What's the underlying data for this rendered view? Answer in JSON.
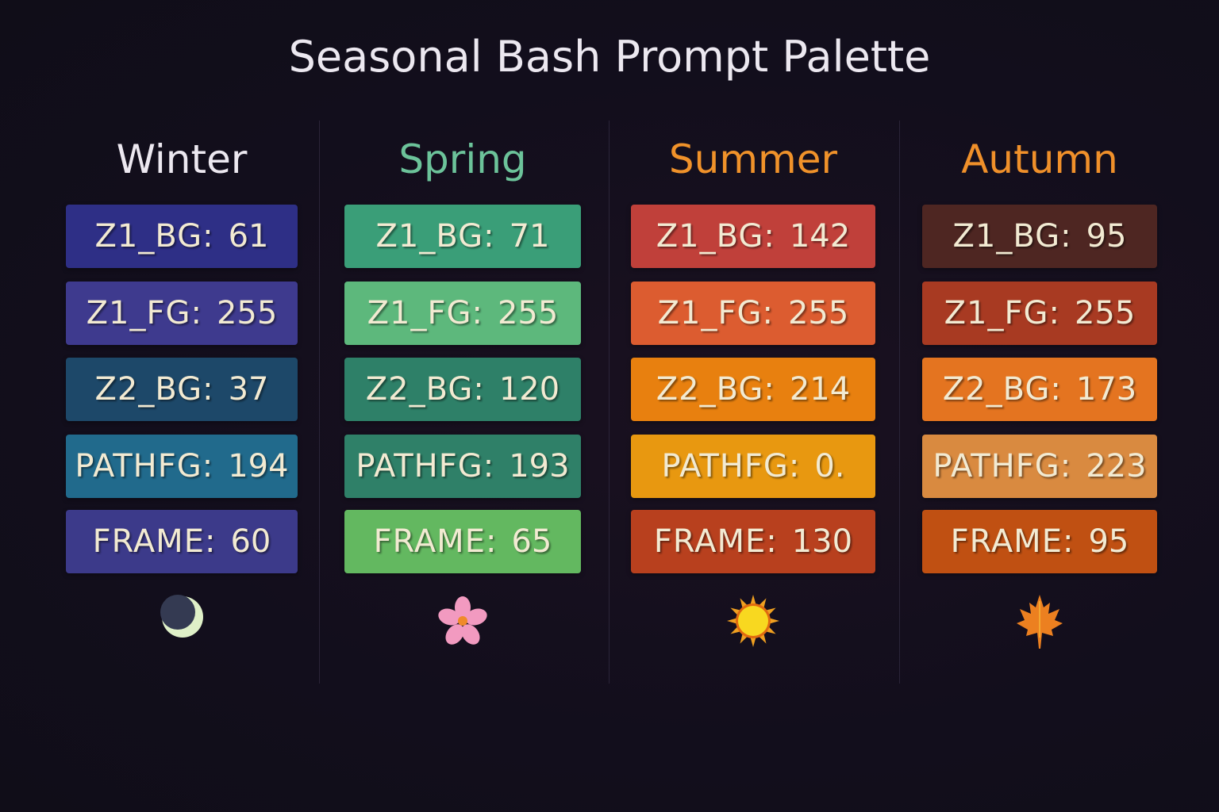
{
  "title": "Seasonal Bash Prompt Palette",
  "columns": [
    {
      "name": "Winter",
      "color": "#ece8f0",
      "icon": "crescent-moon-icon",
      "rows": [
        {
          "label": "Z1_BG:",
          "value": "61",
          "color": "#2e2f86"
        },
        {
          "label": "Z1_FG:",
          "value": "255",
          "color": "#3e3a8e"
        },
        {
          "label": "Z2_BG:",
          "value": "37",
          "color": "#1d4869"
        },
        {
          "label": "PATHFG:",
          "value": "194",
          "color": "#216a8c"
        },
        {
          "label": "FRAME:",
          "value": "60",
          "color": "#3c3a8a"
        }
      ]
    },
    {
      "name": "Spring",
      "color": "#6cc39a",
      "icon": "cherry-blossom-icon",
      "rows": [
        {
          "label": "Z1_BG:",
          "value": "71",
          "color": "#3a9e78"
        },
        {
          "label": "Z1_FG:",
          "value": "255",
          "color": "#5db87c"
        },
        {
          "label": "Z2_BG:",
          "value": "120",
          "color": "#2e8068"
        },
        {
          "label": "PATHFG:",
          "value": "193",
          "color": "#2f8068"
        },
        {
          "label": "FRAME:",
          "value": "65",
          "color": "#63b860"
        }
      ]
    },
    {
      "name": "Summer",
      "color": "#f0922a",
      "icon": "sun-icon",
      "rows": [
        {
          "label": "Z1_BG:",
          "value": "142",
          "color": "#c0403a"
        },
        {
          "label": "Z1_FG:",
          "value": "255",
          "color": "#dc5c30"
        },
        {
          "label": "Z2_BG:",
          "value": "214",
          "color": "#e8800f"
        },
        {
          "label": "PATHFG:",
          "value": "0.",
          "color": "#e89810"
        },
        {
          "label": "FRAME:",
          "value": "130",
          "color": "#b8401e"
        }
      ]
    },
    {
      "name": "Autumn",
      "color": "#f0902a",
      "icon": "maple-leaf-icon",
      "rows": [
        {
          "label": "Z1_BG:",
          "value": "95",
          "color": "#4e2622"
        },
        {
          "label": "Z1_FG:",
          "value": "255",
          "color": "#a83a22"
        },
        {
          "label": "Z2_BG:",
          "value": "173",
          "color": "#e47420"
        },
        {
          "label": "PATHFG:",
          "value": "223",
          "color": "#d98a40"
        },
        {
          "label": "FRAME:",
          "value": "95",
          "color": "#c05012"
        }
      ]
    }
  ]
}
